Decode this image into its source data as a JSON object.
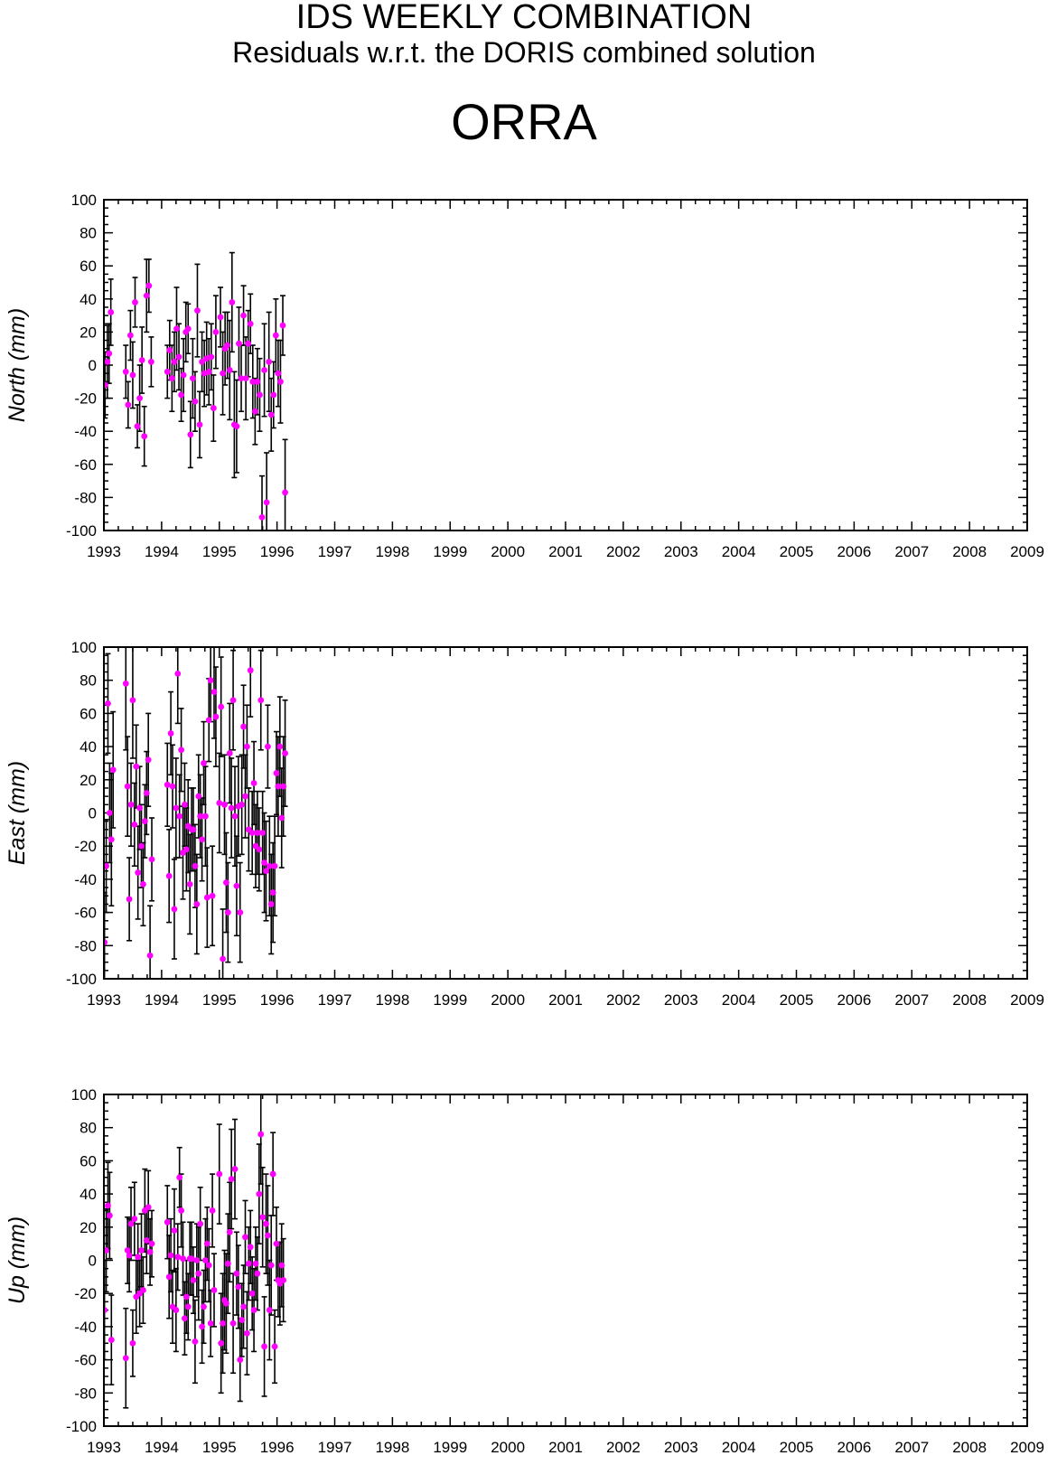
{
  "title": "IDS WEEKLY COMBINATION",
  "subtitle": "Residuals w.r.t. the DORIS combined solution",
  "station": "ORRA",
  "colors": {
    "marker": "#ff00ff",
    "errorbar": "#000000",
    "axis": "#000000"
  },
  "chart_data": [
    {
      "type": "scatter",
      "ylabel": "North (mm)",
      "ylim": [
        -100,
        100
      ],
      "xlim": [
        1993,
        2009
      ],
      "yticks": [
        "100",
        "80",
        "60",
        "40",
        "20",
        "0",
        "-20",
        "-40",
        "-60",
        "-80",
        "-100"
      ],
      "xticks": [
        "1993",
        "1994",
        "1995",
        "1996",
        "1997",
        "1998",
        "1999",
        "2000",
        "2001",
        "2002",
        "2003",
        "2004",
        "2005",
        "2006",
        "2007",
        "2008",
        "2009"
      ],
      "points": [
        [
          1993.02,
          -12,
          20
        ],
        [
          1993.06,
          2,
          22
        ],
        [
          1993.09,
          7,
          18
        ],
        [
          1993.12,
          32,
          20
        ],
        [
          1993.38,
          -4,
          16
        ],
        [
          1993.42,
          -24,
          14
        ],
        [
          1993.46,
          18,
          15
        ],
        [
          1993.5,
          -6,
          20
        ],
        [
          1993.54,
          38,
          15
        ],
        [
          1993.58,
          -37,
          13
        ],
        [
          1993.62,
          -20,
          20
        ],
        [
          1993.66,
          3,
          20
        ],
        [
          1993.7,
          -43,
          18
        ],
        [
          1993.74,
          42,
          22
        ],
        [
          1993.78,
          48,
          16
        ],
        [
          1993.82,
          2,
          15
        ],
        [
          1994.1,
          -4,
          16
        ],
        [
          1994.14,
          9,
          18
        ],
        [
          1994.18,
          -8,
          20
        ],
        [
          1994.22,
          2,
          18
        ],
        [
          1994.26,
          22,
          25
        ],
        [
          1994.3,
          5,
          20
        ],
        [
          1994.34,
          -18,
          16
        ],
        [
          1994.38,
          -6,
          22
        ],
        [
          1994.42,
          20,
          18
        ],
        [
          1994.46,
          22,
          15
        ],
        [
          1994.5,
          -42,
          20
        ],
        [
          1994.54,
          -8,
          24
        ],
        [
          1994.58,
          -22,
          18
        ],
        [
          1994.62,
          33,
          28
        ],
        [
          1994.66,
          -36,
          20
        ],
        [
          1994.7,
          2,
          18
        ],
        [
          1994.74,
          -5,
          20
        ],
        [
          1994.78,
          4,
          22
        ],
        [
          1994.82,
          -4,
          20
        ],
        [
          1994.86,
          5,
          20
        ],
        [
          1994.9,
          -26,
          20
        ],
        [
          1994.94,
          20,
          22
        ],
        [
          1995.02,
          29,
          18
        ],
        [
          1995.06,
          -5,
          25
        ],
        [
          1995.1,
          10,
          22
        ],
        [
          1995.14,
          12,
          20
        ],
        [
          1995.18,
          -3,
          30
        ],
        [
          1995.22,
          38,
          30
        ],
        [
          1995.26,
          -36,
          32
        ],
        [
          1995.3,
          -37,
          28
        ],
        [
          1995.34,
          13,
          22
        ],
        [
          1995.38,
          -8,
          20
        ],
        [
          1995.42,
          30,
          18
        ],
        [
          1995.46,
          -8,
          25
        ],
        [
          1995.5,
          13,
          20
        ],
        [
          1995.54,
          25,
          18
        ],
        [
          1995.58,
          -10,
          22
        ],
        [
          1995.62,
          -28,
          20
        ],
        [
          1995.66,
          -10,
          20
        ],
        [
          1995.7,
          -18,
          22
        ],
        [
          1995.74,
          -92,
          25
        ],
        [
          1995.78,
          -3,
          28
        ],
        [
          1995.82,
          -83,
          30
        ],
        [
          1995.86,
          2,
          30
        ],
        [
          1995.9,
          -30,
          22
        ],
        [
          1995.94,
          -18,
          20
        ],
        [
          1995.98,
          18,
          22
        ],
        [
          1996.02,
          -5,
          20
        ],
        [
          1996.06,
          -10,
          25
        ],
        [
          1996.1,
          24,
          18
        ],
        [
          1996.14,
          -77,
          32
        ]
      ]
    },
    {
      "type": "scatter",
      "ylabel": "East (mm)",
      "ylim": [
        -100,
        100
      ],
      "xlim": [
        1993,
        2009
      ],
      "yticks": [
        "100",
        "80",
        "60",
        "40",
        "20",
        "0",
        "-20",
        "-40",
        "-60",
        "-80",
        "-100"
      ],
      "xticks": [
        "1993",
        "1994",
        "1995",
        "1996",
        "1997",
        "1998",
        "1999",
        "2000",
        "2001",
        "2002",
        "2003",
        "2004",
        "2005",
        "2006",
        "2007",
        "2008",
        "2009"
      ],
      "points": [
        [
          1993.01,
          -78,
          30
        ],
        [
          1993.04,
          -32,
          28
        ],
        [
          1993.07,
          66,
          30
        ],
        [
          1993.1,
          0,
          30
        ],
        [
          1993.13,
          -16,
          40
        ],
        [
          1993.16,
          26,
          35
        ],
        [
          1993.38,
          78,
          40
        ],
        [
          1993.41,
          16,
          30
        ],
        [
          1993.44,
          -52,
          25
        ],
        [
          1993.47,
          5,
          25
        ],
        [
          1993.5,
          68,
          35
        ],
        [
          1993.53,
          -7,
          25
        ],
        [
          1993.56,
          28,
          25
        ],
        [
          1993.59,
          -36,
          28
        ],
        [
          1993.62,
          3,
          25
        ],
        [
          1993.65,
          -20,
          25
        ],
        [
          1993.68,
          -43,
          25
        ],
        [
          1993.71,
          -5,
          22
        ],
        [
          1993.74,
          12,
          25
        ],
        [
          1993.77,
          32,
          28
        ],
        [
          1993.8,
          -86,
          30
        ],
        [
          1993.83,
          -28,
          25
        ],
        [
          1994.1,
          17,
          25
        ],
        [
          1994.13,
          -38,
          28
        ],
        [
          1994.16,
          48,
          25
        ],
        [
          1994.19,
          16,
          25
        ],
        [
          1994.22,
          -58,
          30
        ],
        [
          1994.25,
          3,
          30
        ],
        [
          1994.28,
          84,
          30
        ],
        [
          1994.31,
          -2,
          25
        ],
        [
          1994.34,
          38,
          25
        ],
        [
          1994.37,
          -24,
          28
        ],
        [
          1994.4,
          5,
          25
        ],
        [
          1994.43,
          -22,
          25
        ],
        [
          1994.46,
          -8,
          28
        ],
        [
          1994.49,
          -43,
          30
        ],
        [
          1994.52,
          -10,
          25
        ],
        [
          1994.55,
          -10,
          25
        ],
        [
          1994.58,
          -32,
          25
        ],
        [
          1994.61,
          -55,
          30
        ],
        [
          1994.64,
          10,
          25
        ],
        [
          1994.67,
          -2,
          25
        ],
        [
          1994.7,
          -16,
          25
        ],
        [
          1994.73,
          30,
          25
        ],
        [
          1994.76,
          -2,
          30
        ],
        [
          1994.79,
          -51,
          30
        ],
        [
          1994.82,
          56,
          25
        ],
        [
          1994.85,
          80,
          25
        ],
        [
          1994.88,
          -50,
          30
        ],
        [
          1994.91,
          73,
          28
        ],
        [
          1994.94,
          58,
          30
        ],
        [
          1995.0,
          6,
          30
        ],
        [
          1995.03,
          64,
          30
        ],
        [
          1995.06,
          -88,
          30
        ],
        [
          1995.09,
          5,
          30
        ],
        [
          1995.12,
          -42,
          30
        ],
        [
          1995.15,
          -60,
          30
        ],
        [
          1995.18,
          36,
          30
        ],
        [
          1995.21,
          3,
          30
        ],
        [
          1995.24,
          68,
          30
        ],
        [
          1995.27,
          -2,
          30
        ],
        [
          1995.3,
          -44,
          30
        ],
        [
          1995.33,
          4,
          30
        ],
        [
          1995.36,
          -60,
          30
        ],
        [
          1995.39,
          5,
          30
        ],
        [
          1995.42,
          52,
          25
        ],
        [
          1995.45,
          10,
          25
        ],
        [
          1995.48,
          40,
          25
        ],
        [
          1995.51,
          -10,
          25
        ],
        [
          1995.54,
          86,
          28
        ],
        [
          1995.57,
          -12,
          25
        ],
        [
          1995.6,
          18,
          25
        ],
        [
          1995.63,
          -20,
          25
        ],
        [
          1995.66,
          -12,
          25
        ],
        [
          1995.69,
          -22,
          25
        ],
        [
          1995.72,
          68,
          30
        ],
        [
          1995.75,
          -12,
          25
        ],
        [
          1995.78,
          -30,
          30
        ],
        [
          1995.81,
          -35,
          30
        ],
        [
          1995.84,
          40,
          25
        ],
        [
          1995.87,
          -32,
          30
        ],
        [
          1995.9,
          -55,
          30
        ],
        [
          1995.93,
          -48,
          30
        ],
        [
          1995.96,
          -32,
          30
        ],
        [
          1995.99,
          24,
          25
        ],
        [
          1996.02,
          16,
          30
        ],
        [
          1996.05,
          40,
          30
        ],
        [
          1996.08,
          -3,
          30
        ],
        [
          1996.11,
          16,
          30
        ],
        [
          1996.14,
          36,
          32
        ]
      ]
    },
    {
      "type": "scatter",
      "ylabel": "Up (mm)",
      "ylim": [
        -100,
        100
      ],
      "xlim": [
        1993,
        2009
      ],
      "yticks": [
        "100",
        "80",
        "60",
        "40",
        "20",
        "0",
        "-20",
        "-40",
        "-60",
        "-80",
        "-100"
      ],
      "xticks": [
        "1993",
        "1994",
        "1995",
        "1996",
        "1997",
        "1998",
        "1999",
        "2000",
        "2001",
        "2002",
        "2003",
        "2004",
        "2005",
        "2006",
        "2007",
        "2008",
        "2009"
      ],
      "points": [
        [
          1993.01,
          -30,
          30
        ],
        [
          1993.04,
          6,
          25
        ],
        [
          1993.07,
          33,
          26
        ],
        [
          1993.1,
          27,
          26
        ],
        [
          1993.13,
          -48,
          27
        ],
        [
          1993.38,
          -59,
          30
        ],
        [
          1993.41,
          6,
          20
        ],
        [
          1993.44,
          3,
          22
        ],
        [
          1993.47,
          22,
          22
        ],
        [
          1993.5,
          -50,
          20
        ],
        [
          1993.53,
          25,
          22
        ],
        [
          1993.56,
          -22,
          22
        ],
        [
          1993.59,
          2,
          20
        ],
        [
          1993.62,
          -20,
          20
        ],
        [
          1993.65,
          6,
          22
        ],
        [
          1993.68,
          -18,
          20
        ],
        [
          1993.71,
          30,
          25
        ],
        [
          1993.74,
          12,
          20
        ],
        [
          1993.77,
          32,
          22
        ],
        [
          1993.8,
          5,
          20
        ],
        [
          1993.83,
          10,
          20
        ],
        [
          1994.1,
          23,
          22
        ],
        [
          1994.13,
          -10,
          25
        ],
        [
          1994.16,
          3,
          22
        ],
        [
          1994.19,
          -28,
          22
        ],
        [
          1994.22,
          18,
          25
        ],
        [
          1994.25,
          -30,
          25
        ],
        [
          1994.28,
          2,
          20
        ],
        [
          1994.31,
          50,
          18
        ],
        [
          1994.34,
          30,
          22
        ],
        [
          1994.37,
          1,
          22
        ],
        [
          1994.4,
          -35,
          22
        ],
        [
          1994.43,
          -22,
          22
        ],
        [
          1994.46,
          -28,
          20
        ],
        [
          1994.49,
          1,
          22
        ],
        [
          1994.52,
          1,
          22
        ],
        [
          1994.55,
          -12,
          20
        ],
        [
          1994.58,
          -49,
          25
        ],
        [
          1994.61,
          0,
          22
        ],
        [
          1994.64,
          -8,
          28
        ],
        [
          1994.67,
          22,
          22
        ],
        [
          1994.7,
          -40,
          22
        ],
        [
          1994.73,
          -28,
          22
        ],
        [
          1994.76,
          0,
          25
        ],
        [
          1994.79,
          10,
          22
        ],
        [
          1994.82,
          -3,
          22
        ],
        [
          1994.85,
          -38,
          20
        ],
        [
          1994.88,
          30,
          22
        ],
        [
          1994.91,
          -18,
          22
        ],
        [
          1995.0,
          52,
          30
        ],
        [
          1995.03,
          -50,
          30
        ],
        [
          1995.06,
          -38,
          30
        ],
        [
          1995.09,
          -24,
          30
        ],
        [
          1995.12,
          -26,
          30
        ],
        [
          1995.15,
          -2,
          30
        ],
        [
          1995.18,
          17,
          30
        ],
        [
          1995.21,
          49,
          30
        ],
        [
          1995.24,
          -38,
          30
        ],
        [
          1995.27,
          55,
          30
        ],
        [
          1995.3,
          -8,
          25
        ],
        [
          1995.33,
          -16,
          25
        ],
        [
          1995.36,
          -60,
          25
        ],
        [
          1995.39,
          -36,
          22
        ],
        [
          1995.42,
          -28,
          25
        ],
        [
          1995.45,
          14,
          22
        ],
        [
          1995.48,
          -44,
          25
        ],
        [
          1995.51,
          -2,
          22
        ],
        [
          1995.54,
          8,
          22
        ],
        [
          1995.57,
          -20,
          22
        ],
        [
          1995.6,
          -30,
          25
        ],
        [
          1995.63,
          -2,
          22
        ],
        [
          1995.66,
          -8,
          22
        ],
        [
          1995.69,
          40,
          30
        ],
        [
          1995.72,
          76,
          30
        ],
        [
          1995.75,
          26,
          30
        ],
        [
          1995.78,
          -52,
          30
        ],
        [
          1995.81,
          22,
          30
        ],
        [
          1995.84,
          15,
          30
        ],
        [
          1995.87,
          -30,
          30
        ],
        [
          1995.9,
          -3,
          30
        ],
        [
          1995.93,
          52,
          25
        ],
        [
          1995.96,
          -52,
          22
        ],
        [
          1995.99,
          10,
          22
        ],
        [
          1996.02,
          -12,
          22
        ],
        [
          1996.05,
          -14,
          25
        ],
        [
          1996.08,
          -3,
          25
        ],
        [
          1996.11,
          -12,
          25
        ]
      ]
    }
  ]
}
